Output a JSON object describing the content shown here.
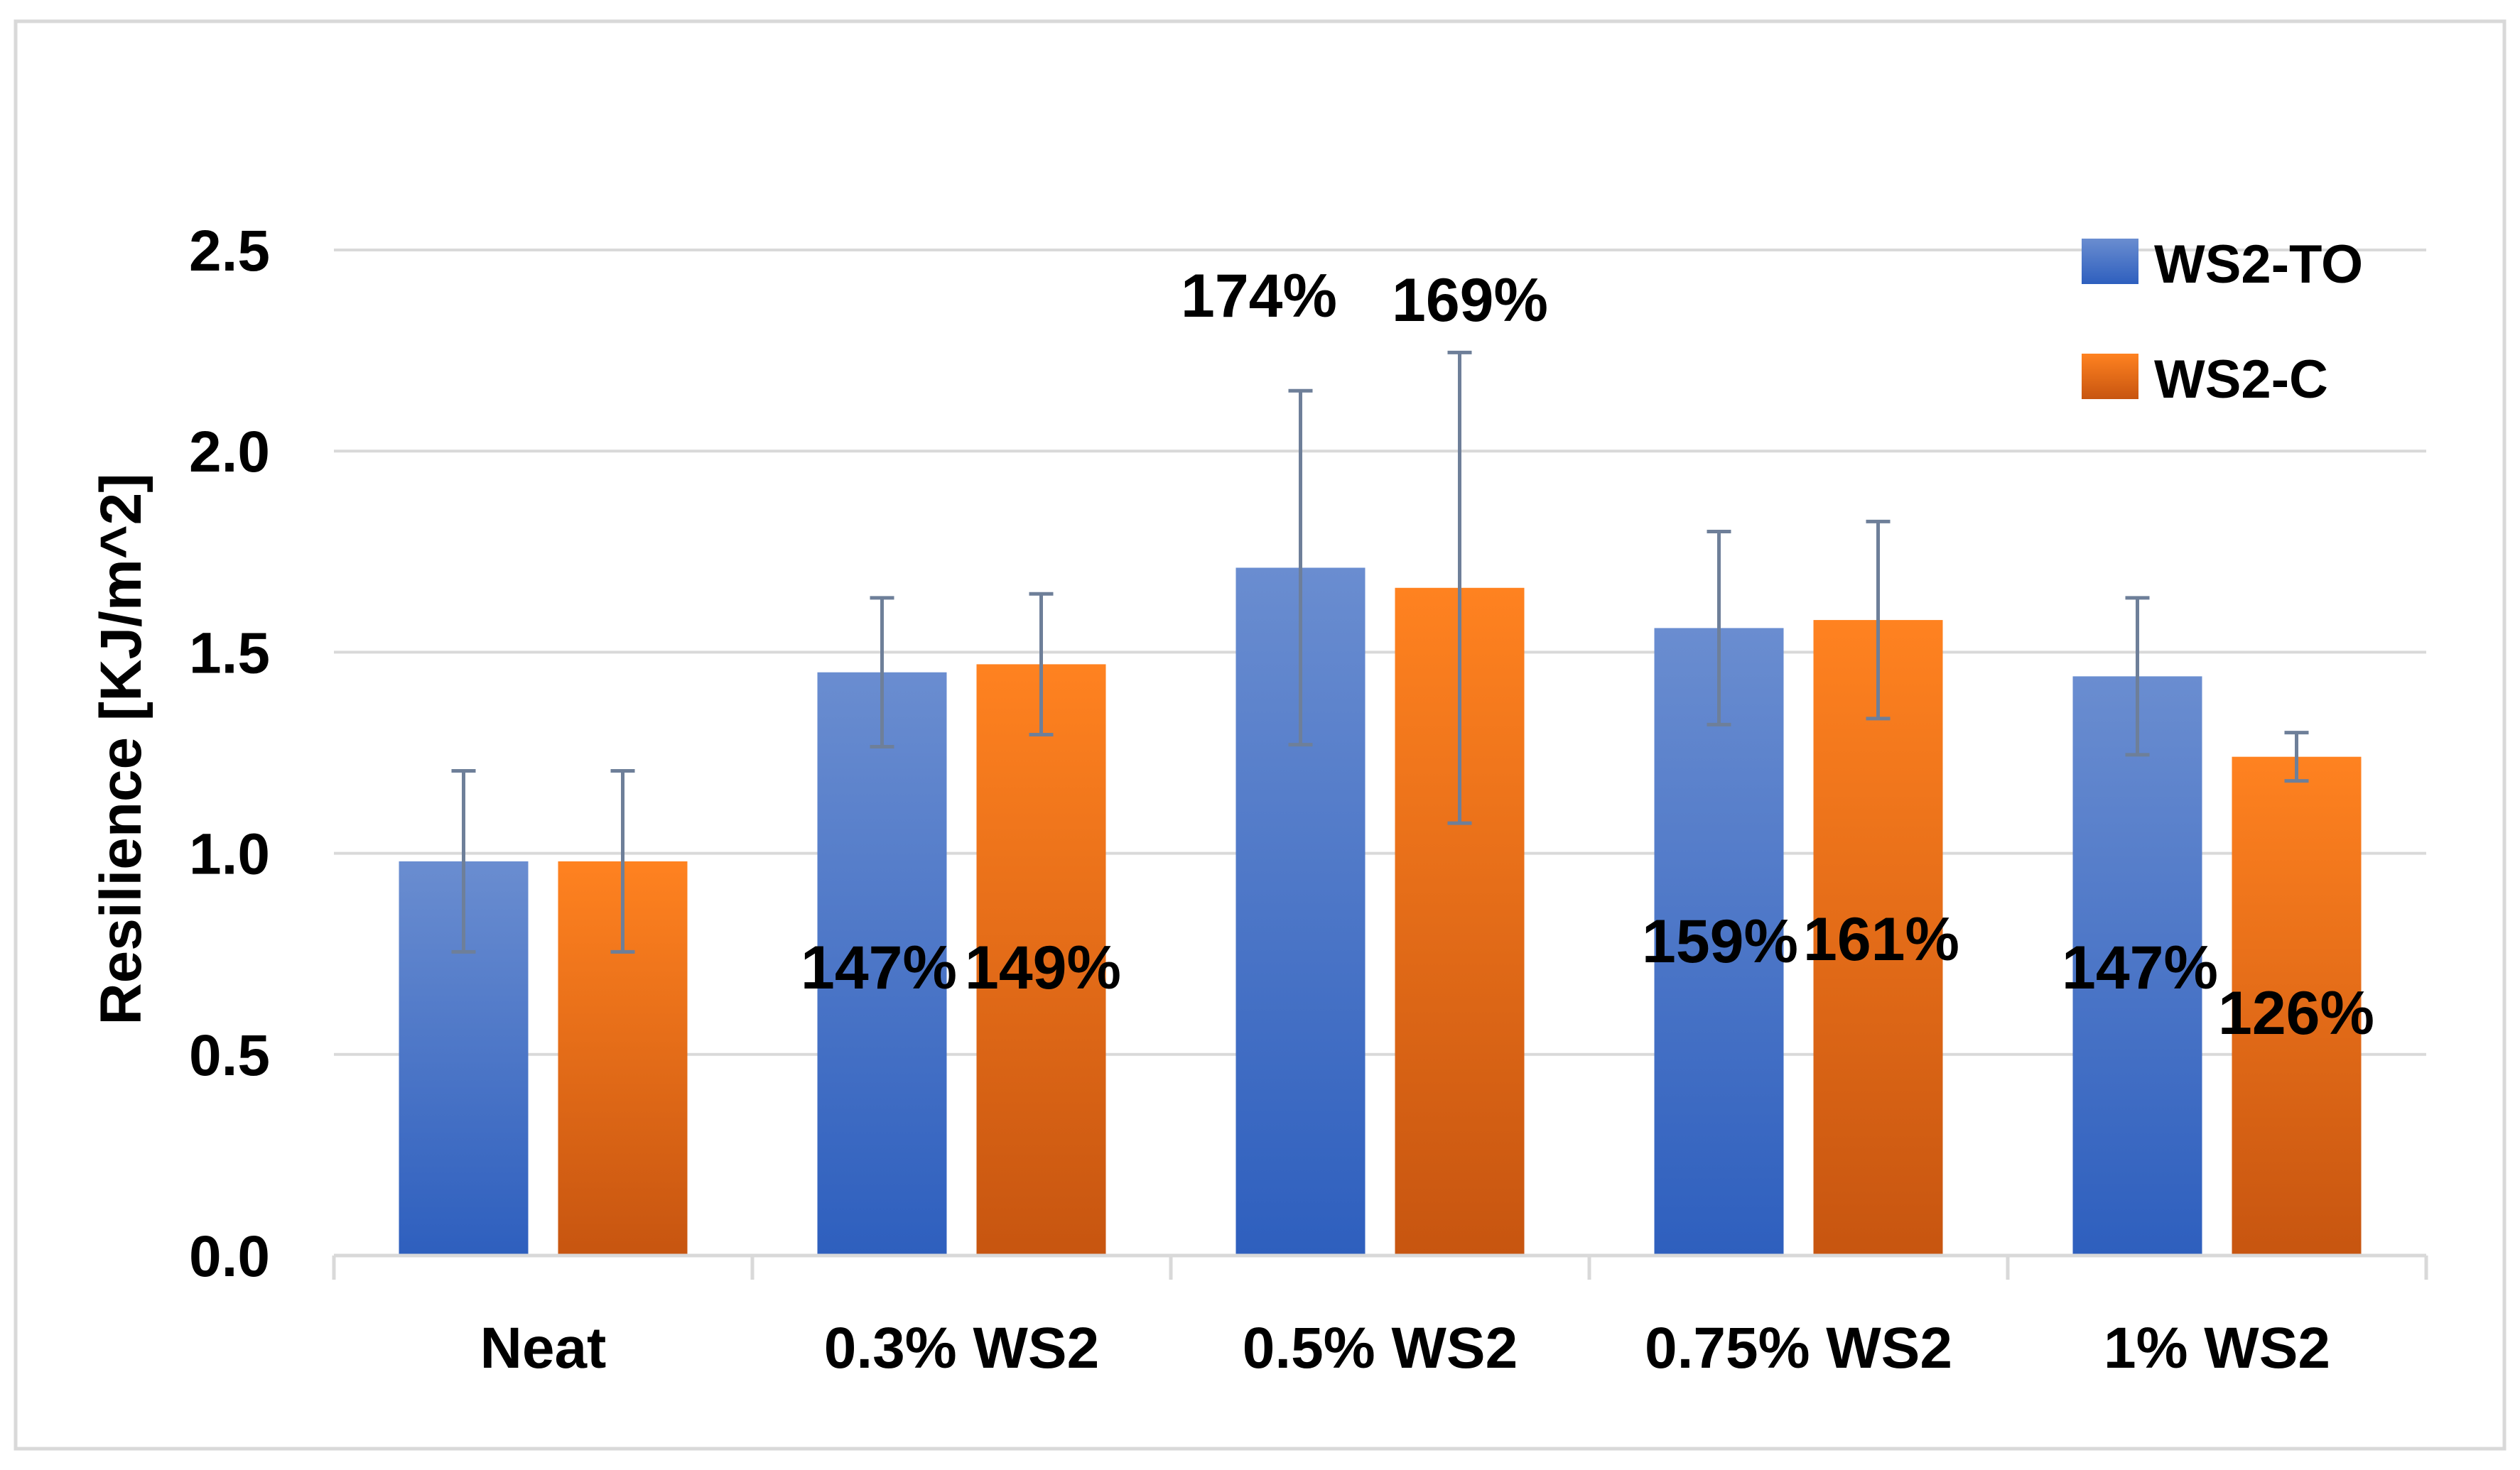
{
  "chart_data": {
    "type": "bar",
    "title": "",
    "xlabel": "",
    "ylabel": "Resilience [KJ/m^2]",
    "ylim": [
      0,
      2.5
    ],
    "yticks": [
      "0.0",
      "0.5",
      "1.0",
      "1.5",
      "2.0",
      "2.5"
    ],
    "grid": true,
    "legend_position": "top-right",
    "categories": [
      "Neat",
      "0.3% WS2",
      "0.5% WS2",
      "0.75% WS2",
      "1% WS2"
    ],
    "series": [
      {
        "name": "WS2-TO",
        "color": "#4472C4",
        "values": [
          0.98,
          1.45,
          1.71,
          1.56,
          1.44
        ],
        "error": [
          0.225,
          0.185,
          0.44,
          0.24,
          0.195
        ],
        "labels": [
          "",
          "147%",
          "174%",
          "159%",
          "147%"
        ]
      },
      {
        "name": "WS2-C",
        "color": "#F57C1F",
        "values": [
          0.98,
          1.47,
          1.66,
          1.58,
          1.24
        ],
        "error": [
          0.225,
          0.175,
          0.585,
          0.245,
          0.06
        ],
        "labels": [
          "",
          "149%",
          "169%",
          "161%",
          "126%"
        ]
      }
    ]
  }
}
